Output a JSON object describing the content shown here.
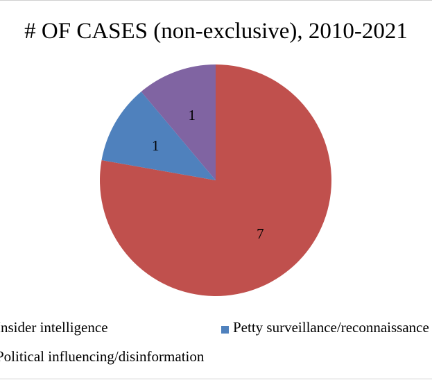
{
  "chart_data": {
    "type": "pie",
    "title": "# OF CASES (non-exclusive), 2010-2021",
    "categories": [
      "Insider intelligence",
      "Petty surveillance/reconnaissance",
      "Political influencing/disinformation"
    ],
    "values": [
      7,
      1,
      1
    ],
    "colors": [
      "#c0504d",
      "#4f81bd",
      "#8064a2"
    ],
    "data_labels": [
      "7",
      "1",
      "1"
    ],
    "legend_position": "bottom"
  }
}
